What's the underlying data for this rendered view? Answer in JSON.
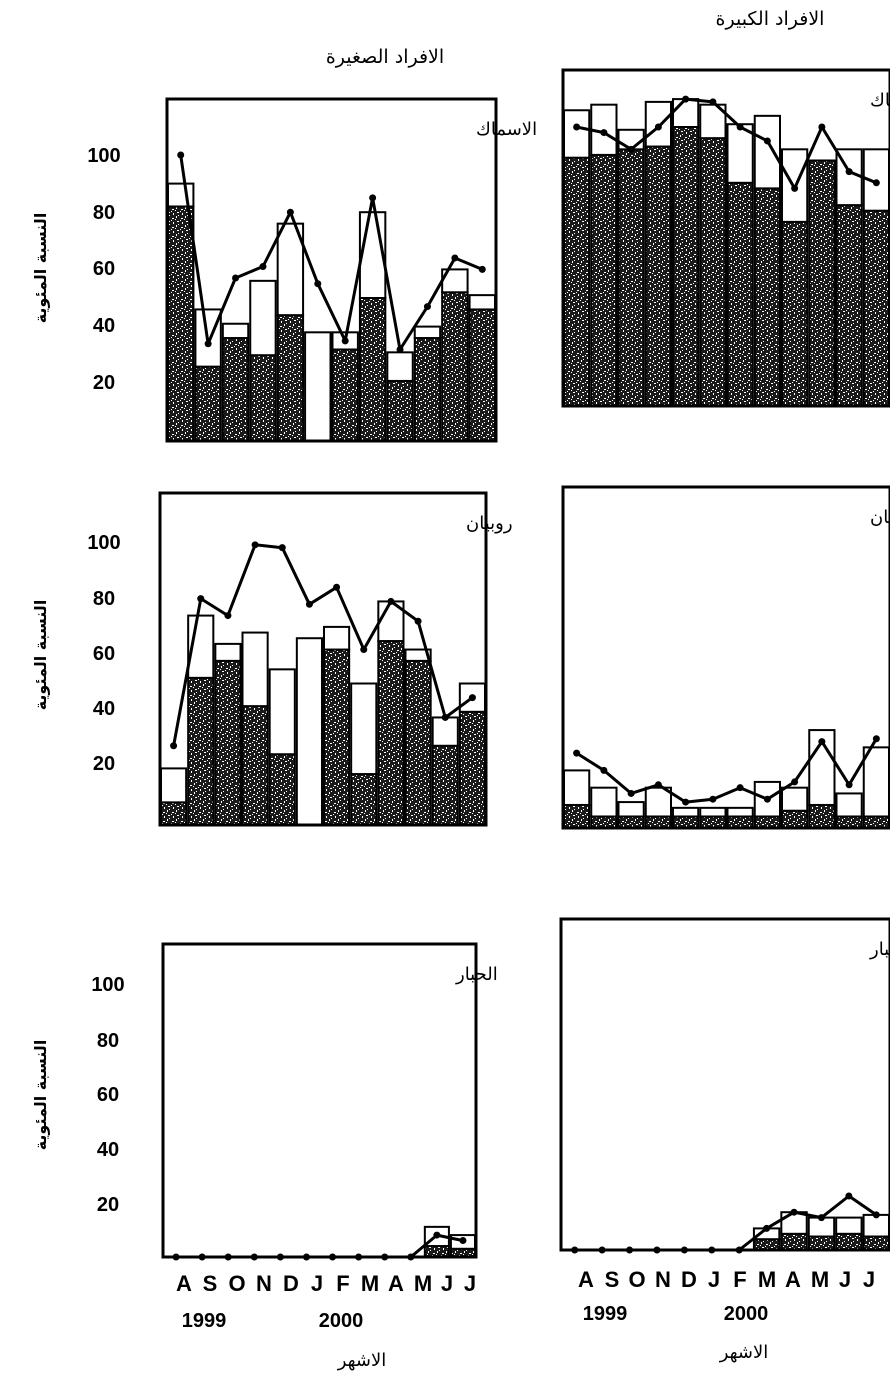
{
  "column_titles": {
    "small": "الافراد الصغيرة",
    "large": "الافراد الكبيرة"
  },
  "y_axis_label": "النسبة المئوية",
  "y_ticks": [
    "100",
    "80",
    "60",
    "40",
    "20"
  ],
  "months": [
    "A",
    "S",
    "O",
    "N",
    "D",
    "J",
    "F",
    "M",
    "A",
    "M",
    "J",
    "J"
  ],
  "years": [
    "1999",
    "2000"
  ],
  "x_axis_label": "الاشهر",
  "colors": {
    "ink": "#000000",
    "speckle": "#1a1a1a",
    "background": "#ffffff"
  },
  "chart_data": [
    {
      "type": "bar",
      "title": "الاسماك",
      "group": "small",
      "categories": [
        "A",
        "S",
        "O",
        "N",
        "D",
        "J",
        "F",
        "M",
        "A",
        "M",
        "J",
        "J"
      ],
      "ylim": [
        0,
        110
      ],
      "series": [
        {
          "values": [
            82,
            26,
            36,
            30,
            44,
            0,
            32,
            50,
            21,
            36,
            52,
            46
          ]
        },
        {
          "values": [
            8,
            20,
            5,
            26,
            32,
            38,
            6,
            30,
            10,
            4,
            8,
            5
          ]
        }
      ],
      "line": [
        100,
        34,
        57,
        61,
        80,
        55,
        35,
        85,
        32,
        47,
        64,
        60
      ]
    },
    {
      "type": "bar",
      "title": "الاسماك",
      "group": "large",
      "categories": [
        "A",
        "S",
        "O",
        "N",
        "D",
        "J",
        "F",
        "M",
        "A",
        "M",
        "J",
        "J"
      ],
      "ylim": [
        0,
        110
      ],
      "series": [
        {
          "values": [
            89,
            90,
            92,
            93,
            100,
            96,
            80,
            78,
            66,
            88,
            72,
            70
          ]
        },
        {
          "values": [
            17,
            18,
            7,
            16,
            10,
            12,
            21,
            26,
            26,
            0,
            20,
            22
          ]
        }
      ],
      "line": [
        100,
        98,
        92,
        100,
        110,
        109,
        100,
        95,
        78,
        100,
        84,
        80
      ]
    },
    {
      "type": "bar",
      "title": "روبيان",
      "group": "small",
      "categories": [
        "A",
        "S",
        "O",
        "N",
        "D",
        "J",
        "F",
        "M",
        "A",
        "M",
        "J",
        "J"
      ],
      "ylim": [
        0,
        110
      ],
      "series": [
        {
          "values": [
            8,
            52,
            58,
            42,
            25,
            0,
            62,
            18,
            65,
            58,
            28,
            40
          ]
        },
        {
          "values": [
            12,
            22,
            6,
            26,
            30,
            66,
            8,
            32,
            14,
            4,
            10,
            10
          ]
        }
      ],
      "line": [
        28,
        80,
        74,
        99,
        98,
        78,
        84,
        62,
        79,
        72,
        38,
        45
      ]
    },
    {
      "type": "bar",
      "title": "روبيان",
      "group": "large",
      "categories": [
        "A",
        "S",
        "O",
        "N",
        "D",
        "J",
        "F",
        "M",
        "A",
        "M",
        "J",
        "J"
      ],
      "ylim": [
        0,
        110
      ],
      "series": [
        {
          "values": [
            8,
            4,
            4,
            4,
            4,
            4,
            4,
            4,
            6,
            8,
            4,
            4
          ]
        },
        {
          "values": [
            12,
            10,
            5,
            10,
            3,
            3,
            3,
            12,
            8,
            26,
            8,
            24
          ]
        }
      ],
      "line": [
        26,
        20,
        12,
        15,
        9,
        10,
        14,
        10,
        16,
        30,
        15,
        31
      ]
    },
    {
      "type": "bar",
      "title": "الحبار",
      "group": "small",
      "categories": [
        "A",
        "S",
        "O",
        "N",
        "D",
        "J",
        "F",
        "M",
        "A",
        "M",
        "J",
        "J"
      ],
      "ylim": [
        0,
        110
      ],
      "series": [
        {
          "values": [
            0,
            0,
            0,
            0,
            0,
            0,
            0,
            0,
            0,
            0,
            4,
            3
          ]
        },
        {
          "values": [
            0,
            0,
            0,
            0,
            0,
            0,
            0,
            0,
            0,
            0,
            7,
            5
          ]
        }
      ],
      "line": [
        0,
        0,
        0,
        0,
        0,
        0,
        0,
        0,
        0,
        0,
        8,
        6
      ]
    },
    {
      "type": "bar",
      "title": "الحبار",
      "group": "large",
      "categories": [
        "A",
        "S",
        "O",
        "N",
        "D",
        "J",
        "F",
        "M",
        "A",
        "M",
        "J",
        "J"
      ],
      "ylim": [
        0,
        110
      ],
      "series": [
        {
          "values": [
            0,
            0,
            0,
            0,
            0,
            0,
            0,
            4,
            6,
            5,
            6,
            5
          ]
        },
        {
          "values": [
            0,
            0,
            0,
            0,
            0,
            0,
            0,
            4,
            8,
            7,
            6,
            8
          ]
        }
      ],
      "line": [
        0,
        0,
        0,
        0,
        0,
        0,
        0,
        8,
        14,
        12,
        20,
        13
      ]
    }
  ]
}
